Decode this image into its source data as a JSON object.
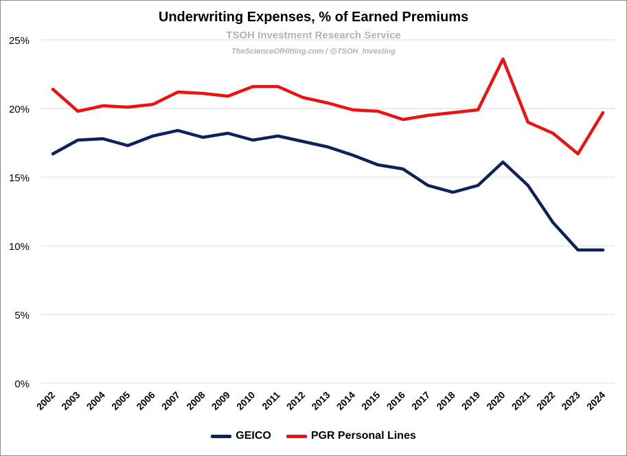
{
  "chart_data": {
    "type": "line",
    "title": "Underwriting Expenses, % of Earned Premiums",
    "watermark_line1": "TSOH Investment Research Service",
    "watermark_line2": "TheScienceOfHitting.com / @TSOH_Investing",
    "categories": [
      "2002",
      "2003",
      "2004",
      "2005",
      "2006",
      "2007",
      "2008",
      "2009",
      "2010",
      "2011",
      "2012",
      "2013",
      "2014",
      "2015",
      "2016",
      "2017",
      "2018",
      "2019",
      "2020",
      "2021",
      "2022",
      "2023",
      "2024"
    ],
    "series": [
      {
        "name": "GEICO",
        "color": "#0d2257",
        "values": [
          16.7,
          17.7,
          17.8,
          17.3,
          18.0,
          18.4,
          17.9,
          18.2,
          17.7,
          18.0,
          17.6,
          17.2,
          16.6,
          15.9,
          15.6,
          14.4,
          13.9,
          14.4,
          16.1,
          14.4,
          11.7,
          9.7,
          9.7
        ]
      },
      {
        "name": "PGR Personal Lines",
        "color": "#ee1111",
        "values": [
          21.4,
          19.8,
          20.2,
          20.1,
          20.3,
          21.2,
          21.1,
          20.9,
          21.6,
          21.6,
          20.8,
          20.4,
          19.9,
          19.8,
          19.2,
          19.5,
          19.7,
          19.9,
          23.6,
          19.0,
          18.2,
          16.7,
          19.7
        ]
      }
    ],
    "y_ticks": [
      "0%",
      "5%",
      "10%",
      "15%",
      "20%",
      "25%"
    ],
    "ylim": [
      0,
      25
    ],
    "grid": true,
    "legend_position": "bottom"
  }
}
